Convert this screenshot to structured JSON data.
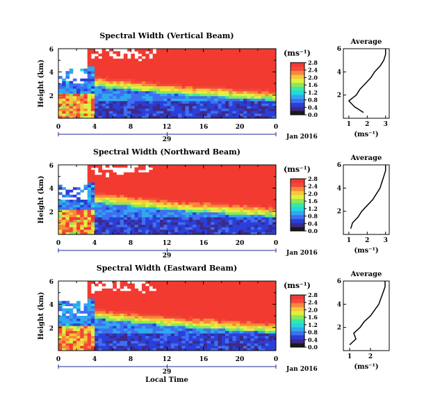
{
  "chart_data": [
    {
      "type": "heatmap",
      "title": "Spectral Width (Vertical Beam)",
      "ylabel": "Height (km)",
      "ylim": [
        0,
        6
      ],
      "y_ticks": [
        "2",
        "4",
        "6"
      ],
      "xlim": [
        0,
        24
      ],
      "x_ticks": [
        "0",
        "4",
        "8",
        "12",
        "16",
        "20",
        "0"
      ],
      "date_tick": "29",
      "date_label": "Jan 2016",
      "colorbar_unit": "(ms⁻¹)",
      "colorbar_ticks": [
        "0.0",
        "0.4",
        "0.8",
        "1.2",
        "1.6",
        "2.0",
        "2.4",
        "2.8"
      ],
      "colorbar_range": [
        0,
        3.0
      ],
      "average_title": "Average",
      "average_xlabel": "(ms⁻¹)",
      "average_xticks": [
        "1",
        "2",
        "3"
      ],
      "average_xlim": [
        0.7,
        3.2
      ],
      "average_yticks": [
        "2",
        "4",
        "6"
      ],
      "average_profile": [
        [
          0.5,
          1.8
        ],
        [
          1.0,
          1.3
        ],
        [
          1.5,
          1.0
        ],
        [
          2.0,
          1.4
        ],
        [
          2.5,
          1.6
        ],
        [
          3.0,
          1.9
        ],
        [
          3.5,
          2.2
        ],
        [
          4.0,
          2.4
        ],
        [
          4.5,
          2.7
        ],
        [
          5.0,
          2.9
        ],
        [
          5.5,
          3.0
        ],
        [
          6.0,
          3.0
        ]
      ]
    },
    {
      "type": "heatmap",
      "title": "Spectral Width (Northward Beam)",
      "ylabel": "Height (km)",
      "ylim": [
        0,
        6
      ],
      "y_ticks": [
        "2",
        "4",
        "6"
      ],
      "xlim": [
        0,
        24
      ],
      "x_ticks": [
        "0",
        "4",
        "8",
        "12",
        "16",
        "20",
        "0"
      ],
      "date_tick": "29",
      "date_label": "Jan 2016",
      "colorbar_unit": "(ms⁻¹)",
      "colorbar_ticks": [
        "0.0",
        "0.4",
        "0.8",
        "1.2",
        "1.6",
        "2.0",
        "2.4",
        "2.8"
      ],
      "colorbar_range": [
        0,
        3.0
      ],
      "average_title": "Average",
      "average_xlabel": "(ms⁻¹)",
      "average_xticks": [
        "1",
        "2",
        "3"
      ],
      "average_xlim": [
        0.7,
        3.2
      ],
      "average_yticks": [
        "2",
        "4",
        "6"
      ],
      "average_profile": [
        [
          0.5,
          1.1
        ],
        [
          1.0,
          1.2
        ],
        [
          1.5,
          1.5
        ],
        [
          2.0,
          1.7
        ],
        [
          2.5,
          2.0
        ],
        [
          3.0,
          2.3
        ],
        [
          3.5,
          2.5
        ],
        [
          4.0,
          2.7
        ],
        [
          4.5,
          2.8
        ],
        [
          5.0,
          2.9
        ],
        [
          5.5,
          3.0
        ],
        [
          6.0,
          3.0
        ]
      ]
    },
    {
      "type": "heatmap",
      "title": "Spectral Width (Eastward Beam)",
      "ylabel": "Height (km)",
      "ylim": [
        0,
        6
      ],
      "y_ticks": [
        "2",
        "4",
        "6"
      ],
      "xlim": [
        0,
        24
      ],
      "x_ticks": [
        "0",
        "4",
        "8",
        "12",
        "16",
        "20",
        "0"
      ],
      "xlabel": "Local Time",
      "date_tick": "29",
      "date_label": "Jan 2016",
      "colorbar_unit": "(ms⁻¹)",
      "colorbar_ticks": [
        "0.0",
        "0.4",
        "0.8",
        "1.2",
        "1.6",
        "2.0",
        "2.4",
        "2.8"
      ],
      "colorbar_range": [
        0,
        3.0
      ],
      "average_title": "Average",
      "average_xlabel": "(ms⁻¹)",
      "average_xticks": [
        "1",
        "2"
      ],
      "average_xlim": [
        0.7,
        2.9
      ],
      "average_yticks": [
        "2",
        "4",
        "6"
      ],
      "average_profile": [
        [
          0.5,
          1.0
        ],
        [
          1.0,
          1.3
        ],
        [
          1.5,
          1.2
        ],
        [
          2.0,
          1.5
        ],
        [
          2.5,
          1.7
        ],
        [
          3.0,
          2.0
        ],
        [
          3.5,
          2.2
        ],
        [
          4.0,
          2.4
        ],
        [
          4.5,
          2.5
        ],
        [
          5.0,
          2.6
        ],
        [
          5.5,
          2.7
        ],
        [
          6.0,
          2.7
        ]
      ]
    }
  ]
}
